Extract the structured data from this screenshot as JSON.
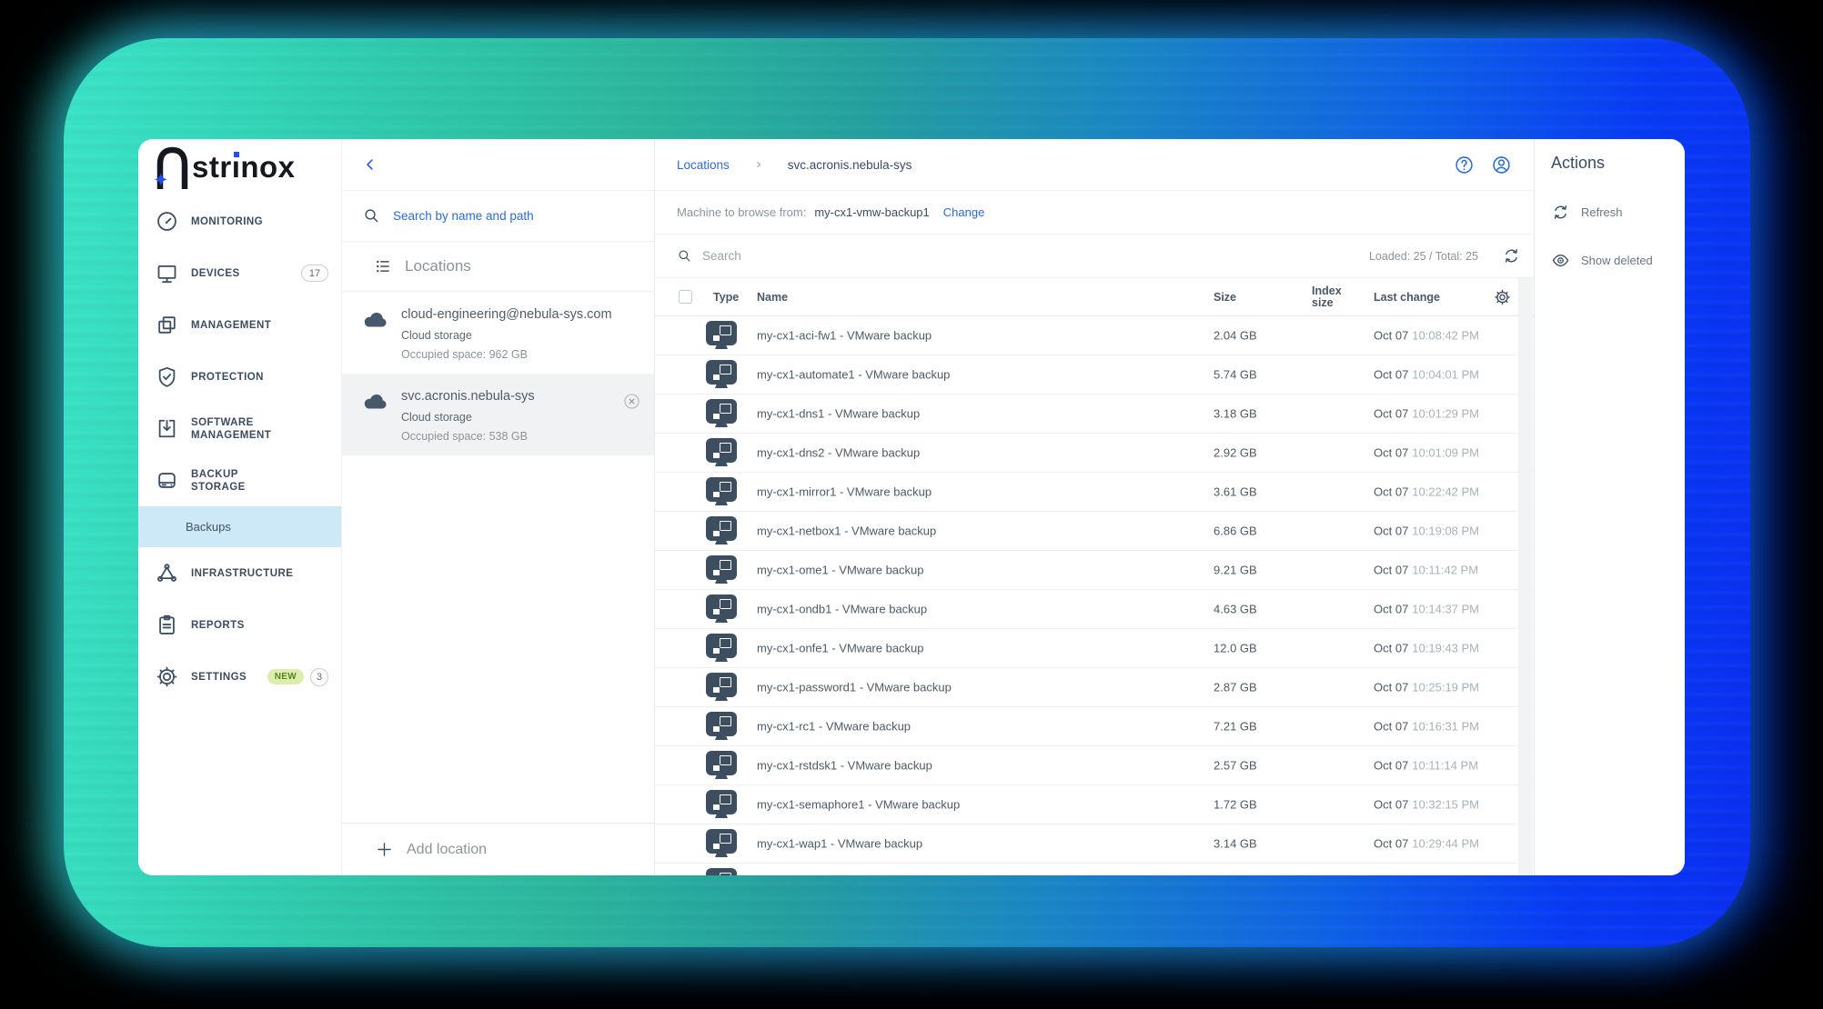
{
  "logo": {
    "p1": "str",
    "i": "ı",
    "p2": "nox",
    "star": "✦",
    "full_name": "Astrinox"
  },
  "colors": {
    "accent_blue": "#2b6cd4",
    "slate": "#3e4f63",
    "sidebar_selected_bg": "#cde9f7",
    "location_selected_bg": "#f1f2f3",
    "badge_new_bg": "#dcedae",
    "badge_new_text": "#56851e",
    "frame_gradient_teal": "#3ae3c6",
    "frame_gradient_blue": "#0a2ef0"
  },
  "sidebar": {
    "items": [
      {
        "label": "MONITORING",
        "icon": "gauge-icon"
      },
      {
        "label": "DEVICES",
        "icon": "monitor-icon",
        "badge": "17"
      },
      {
        "label": "MANAGEMENT",
        "icon": "overlap-squares-icon"
      },
      {
        "label": "PROTECTION",
        "icon": "shield-check-icon"
      },
      {
        "label": "SOFTWARE MANAGEMENT",
        "icon": "install-box-icon"
      },
      {
        "label": "BACKUP STORAGE",
        "icon": "storage-drive-icon"
      },
      {
        "label": "INFRASTRUCTURE",
        "icon": "network-triangle-icon"
      },
      {
        "label": "REPORTS",
        "icon": "clipboard-icon"
      },
      {
        "label": "SETTINGS",
        "icon": "gear-icon",
        "badge_new": "NEW",
        "badge_count": "3"
      }
    ],
    "sub_item": "Backups"
  },
  "locations_panel": {
    "search_link": "Search by name and path",
    "header": "Locations",
    "cards": [
      {
        "title": "cloud-engineering@nebula-sys.com",
        "type": "Cloud storage",
        "occupied": "Occupied space: 962 GB",
        "selected": false
      },
      {
        "title": "svc.acronis.nebula-sys",
        "type": "Cloud storage",
        "occupied": "Occupied space: 538 GB",
        "selected": true
      }
    ],
    "add_label": "Add location"
  },
  "main": {
    "breadcrumb": {
      "root": "Locations",
      "current": "svc.acronis.nebula-sys"
    },
    "machine": {
      "label": "Machine to browse from:",
      "value": "my-cx1-vmw-backup1",
      "change_label": "Change"
    }
  },
  "table": {
    "search_placeholder": "Search",
    "loaded_summary": "Loaded: 25 / Total: 25",
    "columns": {
      "type": "Type",
      "name": "Name",
      "size": "Size",
      "index_size": "Index size",
      "last_change": "Last change"
    },
    "rows": [
      {
        "name": "my-cx1-aci-fw1 - VMware backup",
        "size": "2.04 GB",
        "date": "Oct 07",
        "time": "10:08:42 PM"
      },
      {
        "name": "my-cx1-automate1 - VMware backup",
        "size": "5.74 GB",
        "date": "Oct 07",
        "time": "10:04:01 PM"
      },
      {
        "name": "my-cx1-dns1 - VMware backup",
        "size": "3.18 GB",
        "date": "Oct 07",
        "time": "10:01:29 PM"
      },
      {
        "name": "my-cx1-dns2 - VMware backup",
        "size": "2.92 GB",
        "date": "Oct 07",
        "time": "10:01:09 PM"
      },
      {
        "name": "my-cx1-mirror1 - VMware backup",
        "size": "3.61 GB",
        "date": "Oct 07",
        "time": "10:22:42 PM"
      },
      {
        "name": "my-cx1-netbox1 - VMware backup",
        "size": "6.86 GB",
        "date": "Oct 07",
        "time": "10:19:08 PM"
      },
      {
        "name": "my-cx1-ome1 - VMware backup",
        "size": "9.21 GB",
        "date": "Oct 07",
        "time": "10:11:42 PM"
      },
      {
        "name": "my-cx1-ondb1 - VMware backup",
        "size": "4.63 GB",
        "date": "Oct 07",
        "time": "10:14:37 PM"
      },
      {
        "name": "my-cx1-onfe1 - VMware backup",
        "size": "12.0 GB",
        "date": "Oct 07",
        "time": "10:19:43 PM"
      },
      {
        "name": "my-cx1-password1 - VMware backup",
        "size": "2.87 GB",
        "date": "Oct 07",
        "time": "10:25:19 PM"
      },
      {
        "name": "my-cx1-rc1 - VMware backup",
        "size": "7.21 GB",
        "date": "Oct 07",
        "time": "10:16:31 PM"
      },
      {
        "name": "my-cx1-rstdsk1 - VMware backup",
        "size": "2.57 GB",
        "date": "Oct 07",
        "time": "10:11:14 PM"
      },
      {
        "name": "my-cx1-semaphore1 - VMware backup",
        "size": "1.72 GB",
        "date": "Oct 07",
        "time": "10:32:15 PM"
      },
      {
        "name": "my-cx1-wap1 - VMware backup",
        "size": "3.14 GB",
        "date": "Oct 07",
        "time": "10:29:44 PM"
      }
    ],
    "partial_row_visible": true
  },
  "actions_panel": {
    "title": "Actions",
    "items": [
      {
        "label": "Refresh",
        "icon": "refresh-icon"
      },
      {
        "label": "Show deleted",
        "icon": "eye-icon"
      }
    ]
  }
}
